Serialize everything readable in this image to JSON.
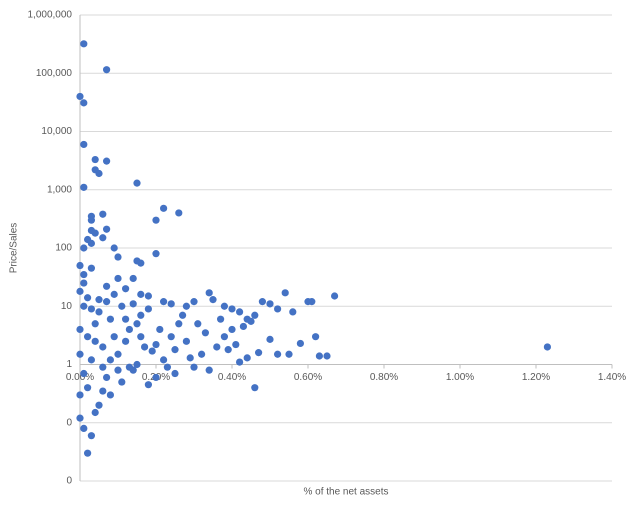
{
  "chart_data": {
    "type": "scatter",
    "x_label": "% of the net assets",
    "y_label": "Price/Sales",
    "log_y": true,
    "grid": true,
    "color": "#4472c4",
    "xlim": [
      0,
      1.4
    ],
    "xticks": [
      {
        "value": 0,
        "label": "0.00%"
      },
      {
        "value": 0.2,
        "label": "0.20%"
      },
      {
        "value": 0.4,
        "label": "0.40%"
      },
      {
        "value": 0.6,
        "label": "0.60%"
      },
      {
        "value": 0.8,
        "label": "0.80%"
      },
      {
        "value": 1.0,
        "label": "1.00%"
      },
      {
        "value": 1.2,
        "label": "1.20%"
      },
      {
        "value": 1.4,
        "label": "1.40%"
      }
    ],
    "ylim": [
      0.01,
      1000000
    ],
    "yticks": [
      {
        "value": 0.01,
        "label": "0"
      },
      {
        "value": 0.1,
        "label": "0"
      },
      1,
      10,
      100,
      {
        "value": 1000,
        "label": "1,000"
      },
      {
        "value": 10000,
        "label": "10,000"
      },
      {
        "value": 100000,
        "label": "100,000"
      },
      {
        "value": 1000000,
        "label": "1,000,000"
      }
    ],
    "x": [
      0.01,
      0.07,
      0,
      0.01,
      0.01,
      0.04,
      0.07,
      0.04,
      0.05,
      0.01,
      0.15,
      0.22,
      0.26,
      0.2,
      0.03,
      0.03,
      0.06,
      0.03,
      0.04,
      0.07,
      0.02,
      0.06,
      0.03,
      0.09,
      0.2,
      0.16,
      0.15,
      0.1,
      0.01,
      0,
      0.03,
      0.01,
      0.01,
      0.1,
      0.14,
      0.07,
      0.12,
      0.16,
      0.18,
      0.22,
      0.24,
      0.28,
      0.3,
      0.34,
      0.35,
      0.38,
      0.4,
      0.42,
      0.44,
      0.46,
      0.48,
      0.5,
      0.52,
      0.54,
      0.56,
      0.6,
      0.61,
      0.67,
      0.62,
      0.65,
      0.63,
      0.55,
      0.52,
      0.58,
      0.5,
      0.46,
      0.47,
      0.44,
      0.42,
      0.4,
      0.38,
      0.36,
      0.34,
      0.32,
      0.3,
      0.28,
      0.26,
      0.25,
      0.24,
      0.22,
      0.2,
      0.18,
      0.17,
      0.16,
      0.15,
      0.14,
      0.13,
      0.12,
      0.11,
      0.1,
      0.09,
      0.08,
      0.07,
      0.06,
      0.05,
      0.05,
      0.04,
      0.04,
      0.03,
      0.03,
      0.02,
      0.02,
      0.02,
      0.01,
      0.01,
      0.01,
      0,
      0,
      0,
      0,
      0,
      0.02,
      0.03,
      0.05,
      0.06,
      0.07,
      0.08,
      0.09,
      0.11,
      0.13,
      0.14,
      0.16,
      0.18,
      0.19,
      0.21,
      0.23,
      0.27,
      0.29,
      0.31,
      0.33,
      0.37,
      0.39,
      0.41,
      0.43,
      0.45,
      1.23,
      0.06,
      0.1,
      0.12,
      0.2,
      0.08,
      0.04,
      0.15,
      0.25
    ],
    "values": [
      320000,
      115000,
      40000,
      31000,
      6000,
      3300,
      3100,
      2200,
      1900,
      1100,
      1300,
      480,
      400,
      300,
      350,
      300,
      380,
      200,
      180,
      210,
      140,
      150,
      120,
      100,
      80,
      55,
      60,
      70,
      100,
      50,
      45,
      35,
      25,
      30,
      30,
      22,
      20,
      16,
      15,
      12,
      11,
      10,
      12,
      17,
      13,
      10,
      9,
      8,
      6,
      7,
      12,
      11,
      9,
      17,
      8,
      12,
      12,
      15,
      3,
      1.4,
      1.4,
      1.5,
      1.5,
      2.3,
      2.7,
      0.4,
      1.6,
      1.3,
      1.1,
      4,
      3,
      2,
      0.8,
      1.5,
      0.9,
      2.5,
      5,
      0.7,
      3,
      1.2,
      0.6,
      0.45,
      2,
      7,
      1,
      0.8,
      4,
      6,
      0.5,
      1.5,
      3,
      0.3,
      0.6,
      2,
      8,
      0.2,
      0.15,
      5,
      0.06,
      1.2,
      0.03,
      0.4,
      3,
      0.08,
      0.7,
      10,
      0.12,
      0.3,
      1.5,
      4,
      18,
      14,
      9,
      13,
      0.9,
      12,
      6,
      16,
      10,
      0.9,
      11,
      3,
      9,
      1.7,
      4,
      0.9,
      7,
      1.3,
      5,
      3.5,
      6,
      1.8,
      2.2,
      4.5,
      5.5,
      2,
      0.35,
      0.8,
      2.5,
      2.2,
      1.2,
      2.5,
      5,
      1.8
    ]
  }
}
